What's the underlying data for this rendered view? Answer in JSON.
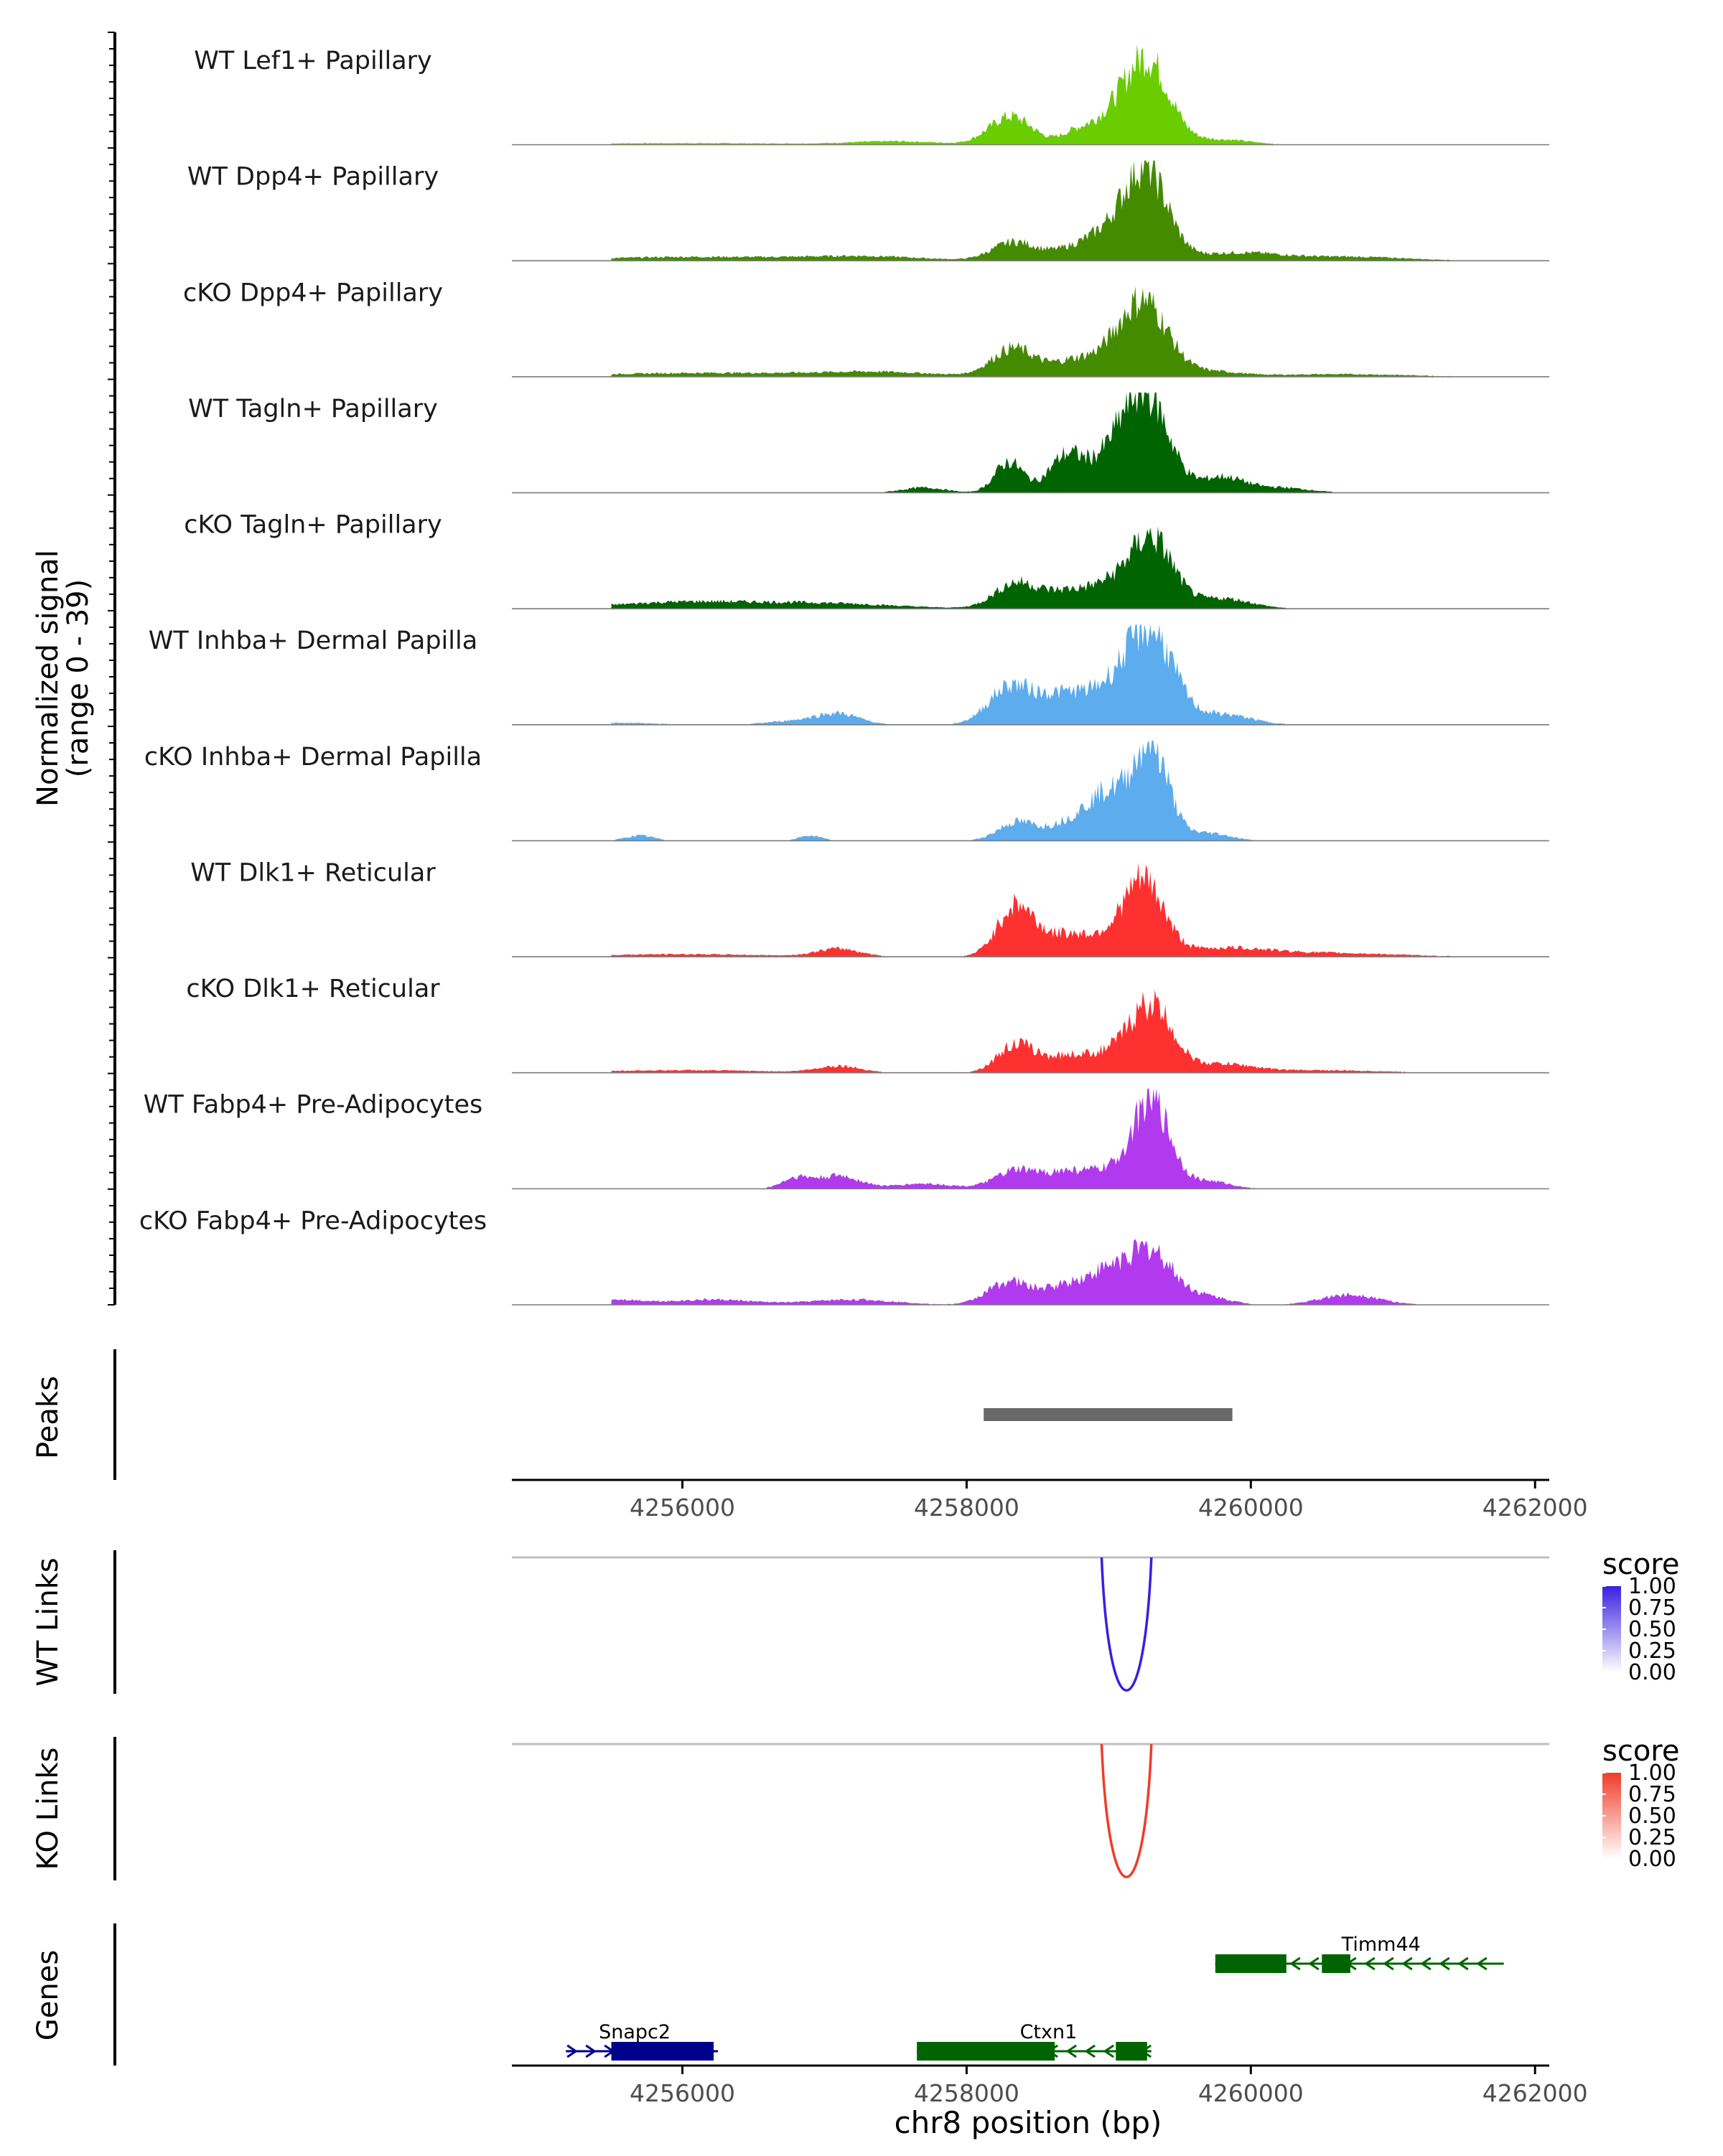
{
  "chart_data": {
    "type": "area",
    "title": "",
    "region": {
      "chrom": "chr8",
      "start": 4254800,
      "end": 4262100
    },
    "xlabel": "chr8 position (bp)",
    "x_ticks": [
      4256000,
      4258000,
      4260000,
      4262000
    ],
    "x_tick_labels": [
      "4256000",
      "4258000",
      "4260000",
      "4262000"
    ],
    "coverage": {
      "ylabel": "Normalized signal",
      "ylabel_range": "(range 0 - 39)",
      "ylim": [
        0,
        39
      ],
      "tracks": [
        {
          "name": "WT Lef1+ Papillary",
          "color": "#6ACD00",
          "peaks": [
            [
              4258310,
              11,
              150
            ],
            [
              4258800,
              6,
              120
            ],
            [
              4259000,
              5,
              100
            ],
            [
              4259260,
              34,
              160
            ],
            [
              4259800,
              2,
              200
            ],
            [
              4256000,
              0.6,
              900
            ],
            [
              4257500,
              1.2,
              300
            ]
          ]
        },
        {
          "name": "WT Dpp4+ Papillary",
          "color": "#458B00",
          "peaks": [
            [
              4258330,
              7,
              150
            ],
            [
              4258800,
              5,
              200
            ],
            [
              4259000,
              6,
              150
            ],
            [
              4259260,
              35,
              150
            ],
            [
              4259900,
              3,
              300
            ],
            [
              4256100,
              1.5,
              700
            ],
            [
              4257300,
              1.5,
              400
            ],
            [
              4260700,
              1.5,
              400
            ]
          ]
        },
        {
          "name": "cKO Dpp4+ Papillary",
          "color": "#458B00",
          "peaks": [
            [
              4258330,
              11,
              150
            ],
            [
              4258750,
              6,
              150
            ],
            [
              4259050,
              7,
              150
            ],
            [
              4259260,
              27,
              160
            ],
            [
              4259700,
              2,
              200
            ],
            [
              4256200,
              1.5,
              800
            ],
            [
              4257400,
              1.5,
              400
            ],
            [
              4260600,
              1,
              500
            ]
          ]
        },
        {
          "name": "WT Tagln+ Papillary",
          "color": "#006400",
          "peaks": [
            [
              4258300,
              12,
              100
            ],
            [
              4258700,
              14,
              120
            ],
            [
              4259000,
              10,
              150
            ],
            [
              4259260,
              38,
              160
            ],
            [
              4259800,
              6,
              150
            ],
            [
              4260200,
              2,
              200
            ],
            [
              4257700,
              2,
              150
            ],
            [
              4261700,
              1.5,
              100
            ]
          ]
        },
        {
          "name": "cKO Tagln+ Papillary",
          "color": "#006400",
          "peaks": [
            [
              4258350,
              10,
              150
            ],
            [
              4258700,
              6,
              150
            ],
            [
              4259000,
              8,
              150
            ],
            [
              4259300,
              27,
              150
            ],
            [
              4259800,
              4,
              200
            ],
            [
              4256000,
              2.5,
              500
            ],
            [
              4257000,
              2,
              500
            ]
          ]
        },
        {
          "name": "WT Inhba+ Dermal Papilla",
          "color": "#5CACEE",
          "peaks": [
            [
              4258300,
              14,
              150
            ],
            [
              4258700,
              12,
              200
            ],
            [
              4259050,
              10,
              150
            ],
            [
              4259300,
              35,
              160
            ],
            [
              4259800,
              4,
              200
            ],
            [
              4257100,
              4,
              150
            ],
            [
              4256800,
              1.5,
              200
            ],
            [
              4255500,
              0.8,
              300
            ]
          ]
        },
        {
          "name": "cKO Inhba+ Dermal Papilla",
          "color": "#5CACEE",
          "peaks": [
            [
              4258350,
              7,
              130
            ],
            [
              4258700,
              6,
              150
            ],
            [
              4259000,
              18,
              150
            ],
            [
              4259300,
              36,
              120
            ],
            [
              4259700,
              3,
              150
            ],
            [
              4255700,
              2,
              100
            ],
            [
              4256900,
              2,
              80
            ]
          ]
        },
        {
          "name": "WT Dlk1+ Reticular",
          "color": "#FF3030",
          "peaks": [
            [
              4258350,
              20,
              130
            ],
            [
              4258700,
              8,
              150
            ],
            [
              4259000,
              6,
              150
            ],
            [
              4259250,
              28,
              140
            ],
            [
              4259800,
              3,
              300
            ],
            [
              4257100,
              3,
              150
            ],
            [
              4256000,
              1,
              600
            ],
            [
              4260500,
              1.5,
              500
            ]
          ]
        },
        {
          "name": "cKO Dlk1+ Reticular",
          "color": "#FF3030",
          "peaks": [
            [
              4258350,
              11,
              130
            ],
            [
              4258700,
              6,
              150
            ],
            [
              4259000,
              6,
              150
            ],
            [
              4259300,
              26,
              150
            ],
            [
              4259800,
              3,
              200
            ],
            [
              4257100,
              2.5,
              150
            ],
            [
              4256000,
              1,
              600
            ],
            [
              4260400,
              1,
              500
            ]
          ]
        },
        {
          "name": "WT Fabp4+ Pre-Adipocytes",
          "color": "#B23AEE",
          "peaks": [
            [
              4258350,
              7,
              150
            ],
            [
              4258700,
              6,
              150
            ],
            [
              4259000,
              6,
              150
            ],
            [
              4259300,
              34,
              130
            ],
            [
              4259700,
              3,
              150
            ],
            [
              4256800,
              4,
              100
            ],
            [
              4257100,
              5,
              150
            ],
            [
              4257700,
              2,
              200
            ]
          ]
        },
        {
          "name": "cKO Fabp4+ Pre-Adipocytes",
          "color": "#B23AEE",
          "peaks": [
            [
              4258300,
              9,
              150
            ],
            [
              4258700,
              7,
              150
            ],
            [
              4259000,
              11,
              150
            ],
            [
              4259300,
              20,
              160
            ],
            [
              4259700,
              3,
              150
            ],
            [
              4260700,
              4,
              200
            ],
            [
              4256200,
              2,
              300
            ],
            [
              4257200,
              2,
              300
            ],
            [
              4255500,
              2,
              200
            ]
          ]
        }
      ]
    },
    "peaks_track": {
      "ylabel": "Peaks",
      "peaks": [
        {
          "start": 4258120,
          "end": 4259870
        }
      ]
    },
    "links": [
      {
        "ylabel": "WT Links",
        "color": "#3A1FE0",
        "start": 4258950,
        "end": 4259300,
        "score": 1.0,
        "legend_title": "score",
        "legend_ticks": [
          "1.00",
          "0.75",
          "0.50",
          "0.25",
          "0.00"
        ]
      },
      {
        "ylabel": "KO Links",
        "color": "#F03C2A",
        "start": 4258950,
        "end": 4259300,
        "score": 1.0,
        "legend_title": "score",
        "legend_ticks": [
          "1.00",
          "0.75",
          "0.50",
          "0.25",
          "0.00"
        ]
      }
    ],
    "genes_track": {
      "ylabel": "Genes",
      "genes": [
        {
          "name": "Snapc2",
          "strand": "+",
          "color": "#00008B",
          "row": 1,
          "start": 4255180,
          "end": 4256250,
          "exons": [
            [
              4255500,
              4256220
            ]
          ]
        },
        {
          "name": "Ctxn1",
          "strand": "-",
          "color": "#006400",
          "row": 1,
          "start": 4257650,
          "end": 4259300,
          "exons": [
            [
              4257650,
              4258620
            ],
            [
              4259050,
              4259270
            ]
          ]
        },
        {
          "name": "Timm44",
          "strand": "-",
          "color": "#006400",
          "row": 0,
          "start": 4259750,
          "end": 4261780,
          "exons": [
            [
              4259750,
              4260250
            ],
            [
              4260500,
              4260700
            ]
          ]
        }
      ]
    }
  }
}
